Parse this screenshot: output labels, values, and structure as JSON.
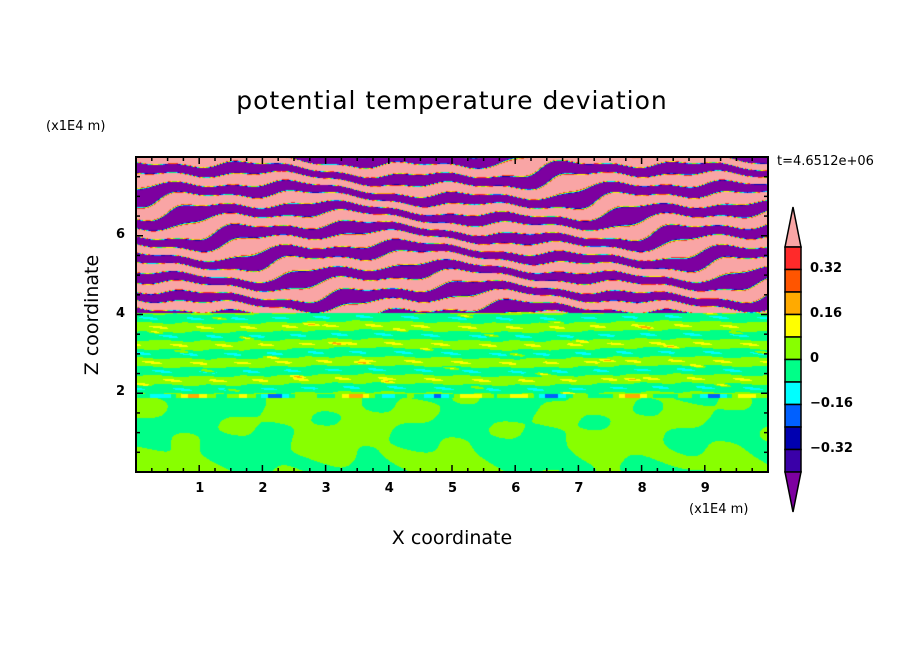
{
  "chart_data": {
    "type": "heatmap",
    "title": "potential temperature deviation",
    "xlabel": "X coordinate",
    "ylabel": "Z coordinate",
    "x_unit": "(x1E4 m)",
    "y_unit": "(x1E4 m)",
    "time_label": "t=4.6512e+06",
    "xlim": [
      0,
      10
    ],
    "ylim": [
      0,
      8
    ],
    "x_ticks": [
      "1",
      "2",
      "3",
      "4",
      "5",
      "6",
      "7",
      "8",
      "9"
    ],
    "y_ticks": [
      "2",
      "4",
      "6"
    ],
    "contour_levels": [
      -0.4,
      -0.32,
      -0.24,
      -0.16,
      -0.08,
      0,
      0.08,
      0.16,
      0.24,
      0.32,
      0.4
    ],
    "colorbar_labels": [
      {
        "value": 0.32,
        "label": "0.32"
      },
      {
        "value": 0.16,
        "label": "0.16"
      },
      {
        "value": 0,
        "label": "0"
      },
      {
        "value": -0.16,
        "label": "−0.16"
      },
      {
        "value": -0.32,
        "label": "−0.32"
      }
    ],
    "colors": [
      "#7d00a0",
      "#3a00a8",
      "#0000b0",
      "#0060ff",
      "#00ffff",
      "#00ff88",
      "#88ff00",
      "#ffff00",
      "#ffaa00",
      "#ff5500",
      "#ff2a2a",
      "#f9a5a5"
    ],
    "field_description_regions": [
      {
        "z_range": [
          4,
          8
        ],
        "pattern": "alternating bands above 0.4 and below -0.4"
      },
      {
        "z_range": [
          2,
          4
        ],
        "pattern": "horizontal layers near 0"
      },
      {
        "z_range": [
          0,
          2
        ],
        "pattern": "convective cells near 0"
      }
    ],
    "legend_placement": "right",
    "grid": false
  }
}
